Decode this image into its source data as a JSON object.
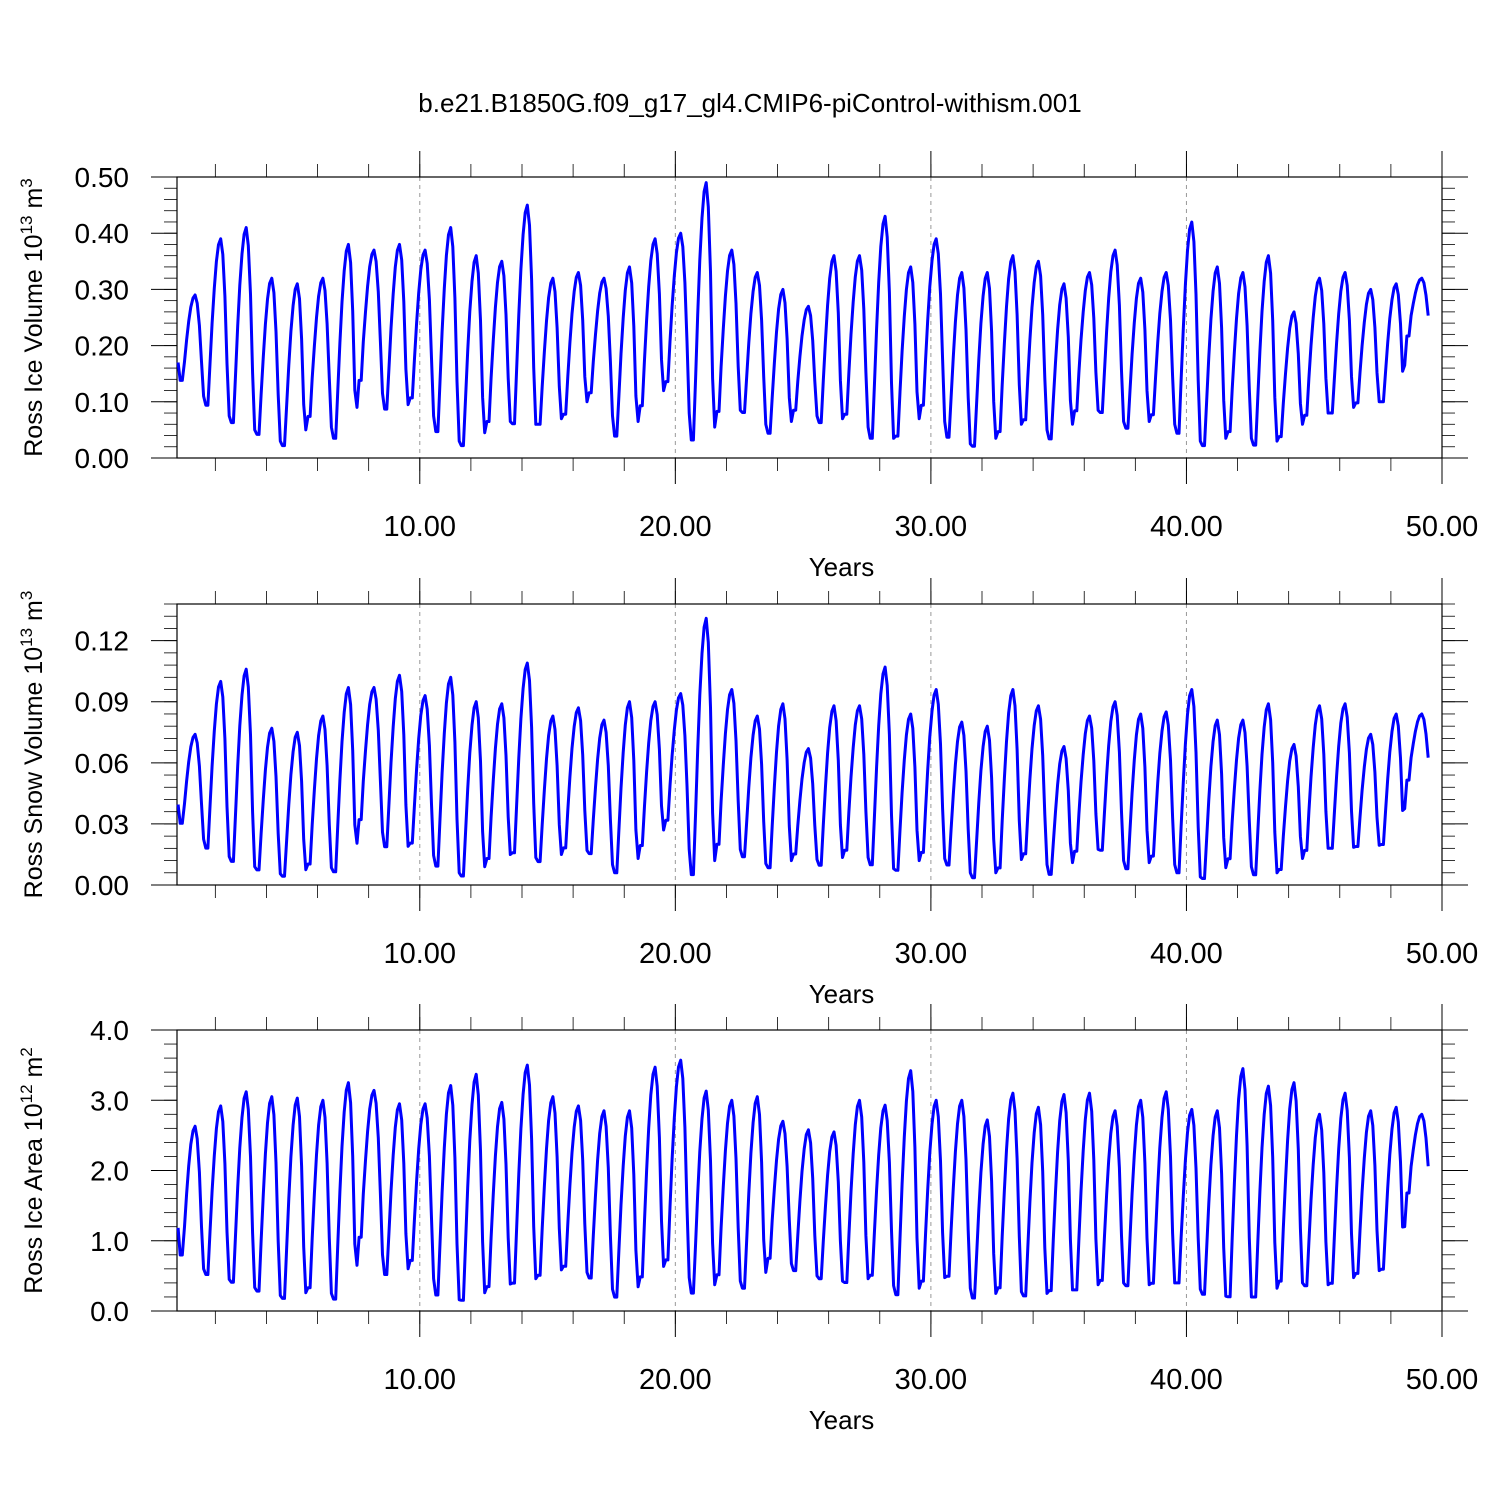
{
  "title": "b.e21.B1850G.f09_g17_gl4.CMIP6-piControl-withism.001",
  "series_color": "#0000ff",
  "chart_data": [
    {
      "type": "line",
      "ylabel": {
        "text": "Ross Ice Volume 10",
        "sup": "13",
        "mid": " m",
        "sup2": "3"
      },
      "xlabel": "Years",
      "xlim": [
        0.5,
        50
      ],
      "ylim": [
        0,
        0.5
      ],
      "yticks": [
        0,
        0.1,
        0.2,
        0.3,
        0.4,
        0.5
      ],
      "ytick_labels": [
        "0.00",
        "0.10",
        "0.20",
        "0.30",
        "0.40",
        "0.50"
      ],
      "yminor_step": 0.02,
      "xticks": [
        10,
        20,
        30,
        40,
        50
      ],
      "xtick_labels": [
        "10.00",
        "20.00",
        "30.00",
        "40.00",
        "50.00"
      ],
      "xminor_step": 2,
      "grid_x": [
        10,
        20,
        30,
        40
      ],
      "annual_max": [
        0.29,
        0.39,
        0.41,
        0.32,
        0.31,
        0.32,
        0.38,
        0.37,
        0.38,
        0.37,
        0.41,
        0.36,
        0.35,
        0.45,
        0.32,
        0.33,
        0.32,
        0.34,
        0.39,
        0.4,
        0.49,
        0.37,
        0.33,
        0.3,
        0.27,
        0.36,
        0.36,
        0.43,
        0.34,
        0.39,
        0.33,
        0.33,
        0.36,
        0.35,
        0.31,
        0.33,
        0.37,
        0.32,
        0.33,
        0.42,
        0.34,
        0.33,
        0.36,
        0.26,
        0.32,
        0.33,
        0.3,
        0.31,
        0.32
      ],
      "annual_min": [
        0.13,
        0.09,
        0.06,
        0.04,
        0.02,
        0.08,
        0.03,
        0.15,
        0.08,
        0.11,
        0.04,
        0.02,
        0.07,
        0.06,
        0.06,
        0.08,
        0.12,
        0.03,
        0.1,
        0.14,
        0.02,
        0.09,
        0.08,
        0.04,
        0.09,
        0.06,
        0.08,
        0.03,
        0.04,
        0.1,
        0.03,
        0.02,
        0.05,
        0.07,
        0.03,
        0.09,
        0.08,
        0.05,
        0.08,
        0.04,
        0.02,
        0.05,
        0.02,
        0.04,
        0.08,
        0.08,
        0.1,
        0.1,
        0.23
      ]
    },
    {
      "type": "line",
      "ylabel": {
        "text": "Ross Snow Volume 10",
        "sup": "13",
        "mid": " m",
        "sup2": "3"
      },
      "xlabel": "Years",
      "xlim": [
        0.5,
        50
      ],
      "ylim": [
        0,
        0.138
      ],
      "yticks": [
        0,
        0.03,
        0.06,
        0.09,
        0.12
      ],
      "ytick_labels": [
        "0.00",
        "0.03",
        "0.06",
        "0.09",
        "0.12"
      ],
      "yminor_step": 0.006,
      "xticks": [
        10,
        20,
        30,
        40,
        50
      ],
      "xtick_labels": [
        "10.00",
        "20.00",
        "30.00",
        "40.00",
        "50.00"
      ],
      "xminor_step": 2,
      "grid_x": [
        10,
        20,
        30,
        40
      ],
      "annual_max": [
        0.074,
        0.1,
        0.106,
        0.077,
        0.075,
        0.083,
        0.097,
        0.097,
        0.103,
        0.093,
        0.102,
        0.09,
        0.089,
        0.109,
        0.083,
        0.087,
        0.081,
        0.09,
        0.09,
        0.094,
        0.131,
        0.096,
        0.083,
        0.089,
        0.067,
        0.088,
        0.088,
        0.107,
        0.084,
        0.096,
        0.08,
        0.078,
        0.096,
        0.088,
        0.068,
        0.083,
        0.09,
        0.084,
        0.085,
        0.096,
        0.081,
        0.081,
        0.089,
        0.069,
        0.088,
        0.089,
        0.074,
        0.084,
        0.084
      ],
      "annual_min": [
        0.028,
        0.017,
        0.011,
        0.007,
        0.004,
        0.011,
        0.006,
        0.035,
        0.017,
        0.021,
        0.008,
        0.004,
        0.014,
        0.016,
        0.011,
        0.019,
        0.015,
        0.005,
        0.021,
        0.033,
        0.002,
        0.022,
        0.013,
        0.008,
        0.016,
        0.009,
        0.018,
        0.009,
        0.007,
        0.017,
        0.009,
        0.003,
        0.009,
        0.016,
        0.004,
        0.018,
        0.017,
        0.007,
        0.015,
        0.005,
        0.003,
        0.014,
        0.004,
        0.008,
        0.018,
        0.018,
        0.019,
        0.02,
        0.055
      ]
    },
    {
      "type": "line",
      "ylabel": {
        "text": "Ross Ice Area 10",
        "sup": "12",
        "mid": " m",
        "sup2": "2"
      },
      "xlabel": "Years",
      "xlim": [
        0.5,
        50
      ],
      "ylim": [
        0,
        4
      ],
      "yticks": [
        0,
        1,
        2,
        3,
        4
      ],
      "ytick_labels": [
        "0.0",
        "1.0",
        "2.0",
        "3.0",
        "4.0"
      ],
      "yminor_step": 0.2,
      "xticks": [
        10,
        20,
        30,
        40,
        50
      ],
      "xtick_labels": [
        "10.00",
        "20.00",
        "30.00",
        "40.00",
        "50.00"
      ],
      "xminor_step": 2,
      "grid_x": [
        10,
        20,
        30,
        40
      ],
      "annual_max": [
        2.63,
        2.92,
        3.12,
        3.05,
        3.03,
        3.0,
        3.25,
        3.14,
        2.95,
        2.95,
        3.21,
        3.37,
        2.97,
        3.5,
        3.05,
        2.92,
        2.85,
        2.85,
        3.47,
        3.57,
        3.13,
        3.0,
        3.05,
        2.7,
        2.58,
        2.55,
        3.0,
        2.93,
        3.42,
        3.0,
        3.0,
        2.72,
        3.1,
        2.9,
        3.08,
        3.1,
        2.85,
        3.0,
        3.12,
        2.87,
        2.85,
        3.45,
        3.2,
        3.25,
        2.8,
        3.1,
        2.85,
        2.9,
        2.8
      ],
      "annual_min": [
        0.7,
        0.5,
        0.4,
        0.27,
        0.17,
        0.35,
        0.15,
        1.15,
        0.45,
        0.75,
        0.17,
        0.15,
        0.37,
        0.4,
        0.52,
        0.65,
        0.45,
        0.17,
        0.52,
        0.75,
        0.2,
        0.55,
        0.3,
        0.8,
        0.55,
        0.45,
        0.4,
        0.52,
        0.2,
        0.45,
        0.5,
        0.15,
        0.35,
        0.2,
        0.3,
        0.3,
        0.45,
        0.35,
        0.4,
        0.4,
        0.22,
        0.2,
        0.2,
        0.45,
        0.35,
        0.4,
        0.55,
        0.6,
        1.8
      ]
    }
  ]
}
